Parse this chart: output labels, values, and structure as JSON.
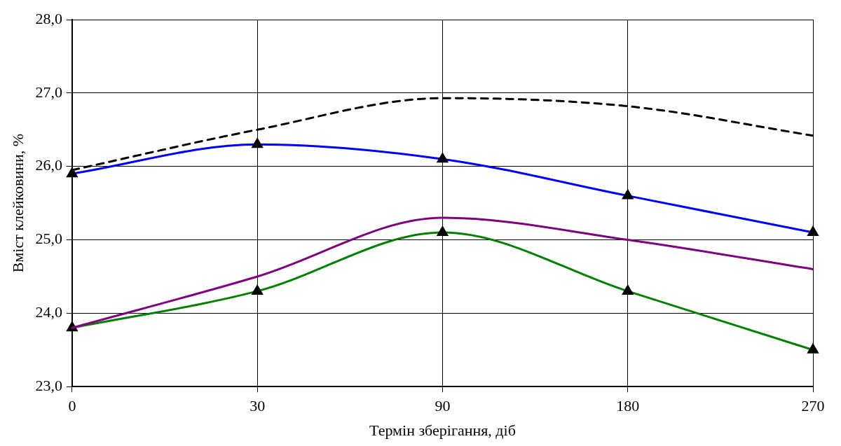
{
  "chart_data": {
    "type": "line",
    "xlabel": "Термін зберігання, діб",
    "ylabel": "Вміст клейковини, %",
    "categories": [
      "0",
      "30",
      "90",
      "180",
      "270"
    ],
    "series": [
      {
        "color": "#000000",
        "line_style": "dashed",
        "marker": "none",
        "values": [
          25.95,
          26.5,
          26.93,
          26.82,
          26.42
        ]
      },
      {
        "color": "#0000ff",
        "line_style": "solid",
        "marker": "triangle",
        "values": [
          25.9,
          26.3,
          26.1,
          25.6,
          25.1
        ]
      },
      {
        "color": "#800080",
        "line_style": "solid",
        "marker": "none",
        "values": [
          23.8,
          24.5,
          25.3,
          25.0,
          24.6
        ]
      },
      {
        "color": "#008000",
        "line_style": "solid",
        "marker": "triangle",
        "values": [
          23.8,
          24.3,
          25.1,
          24.3,
          23.5
        ]
      }
    ],
    "ylim": [
      23,
      28
    ],
    "yticks": [
      {
        "value": 23,
        "label": "23,0"
      },
      {
        "value": 24,
        "label": "24,0"
      },
      {
        "value": 25,
        "label": "25,0"
      },
      {
        "value": 26,
        "label": "26,0"
      },
      {
        "value": 27,
        "label": "27,0"
      },
      {
        "value": 28,
        "label": "28,0"
      }
    ],
    "grid": true,
    "legend": false
  }
}
